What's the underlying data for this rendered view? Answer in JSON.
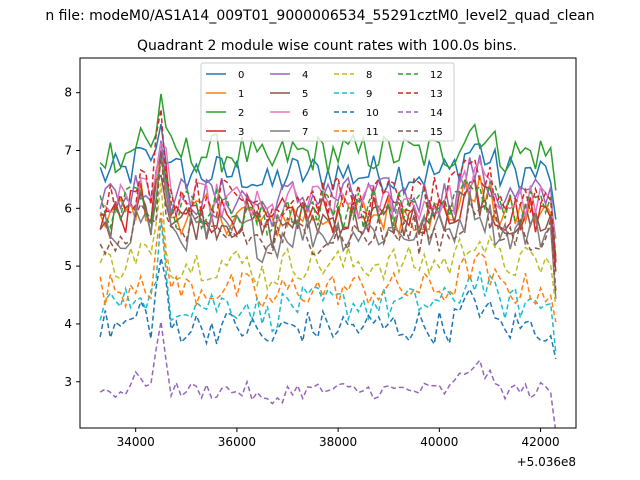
{
  "chart_data": {
    "type": "line",
    "suptitle": "n file: modeM0/AS1A14_009T01_9000006534_55291cztM0_level2_quad_clean",
    "title": "Quadrant 2 module wise count rates with 100.0s bins.",
    "xlabel": "",
    "ylabel": "",
    "x_offset_label": "+5.036e8",
    "xlim": [
      32900,
      42700
    ],
    "ylim": [
      2.2,
      8.6
    ],
    "x_ticks": [
      34000,
      36000,
      38000,
      40000,
      42000
    ],
    "x_tick_labels": [
      "34000",
      "36000",
      "38000",
      "40000",
      "42000"
    ],
    "y_ticks": [
      3,
      4,
      5,
      6,
      7,
      8
    ],
    "y_tick_labels": [
      "3",
      "4",
      "5",
      "6",
      "7",
      "8"
    ],
    "x_start": 33300,
    "x_end": 42300,
    "bin": 100,
    "grid": false,
    "legend_position": "upper-center",
    "series": [
      {
        "name": "0",
        "color": "#1f77b4",
        "dash": false,
        "base": 6.6,
        "amp": 0.35,
        "spike": 0.9
      },
      {
        "name": "1",
        "color": "#ff7f0e",
        "dash": false,
        "base": 5.9,
        "amp": 0.35,
        "spike": 0.9
      },
      {
        "name": "2",
        "color": "#2ca02c",
        "dash": false,
        "base": 6.95,
        "amp": 0.35,
        "spike": 0.9
      },
      {
        "name": "3",
        "color": "#d62728",
        "dash": false,
        "base": 5.9,
        "amp": 0.35,
        "spike": 1.0
      },
      {
        "name": "4",
        "color": "#9467bd",
        "dash": false,
        "base": 6.2,
        "amp": 0.35,
        "spike": 1.0
      },
      {
        "name": "5",
        "color": "#8c564b",
        "dash": false,
        "base": 5.8,
        "amp": 0.35,
        "spike": 1.0
      },
      {
        "name": "6",
        "color": "#e377c2",
        "dash": false,
        "base": 6.1,
        "amp": 0.35,
        "spike": 1.0
      },
      {
        "name": "7",
        "color": "#7f7f7f",
        "dash": false,
        "base": 5.6,
        "amp": 0.35,
        "spike": 1.0
      },
      {
        "name": "8",
        "color": "#bcbd22",
        "dash": true,
        "base": 5.05,
        "amp": 0.3,
        "spike": 1.0
      },
      {
        "name": "9",
        "color": "#17becf",
        "dash": true,
        "base": 4.35,
        "amp": 0.3,
        "spike": 1.1
      },
      {
        "name": "10",
        "color": "#1f77b4",
        "dash": true,
        "base": 3.95,
        "amp": 0.3,
        "spike": 1.1
      },
      {
        "name": "11",
        "color": "#ff7f0e",
        "dash": true,
        "base": 4.6,
        "amp": 0.3,
        "spike": 1.1
      },
      {
        "name": "12",
        "color": "#2ca02c",
        "dash": true,
        "base": 6.0,
        "amp": 0.35,
        "spike": 1.0
      },
      {
        "name": "13",
        "color": "#d62728",
        "dash": true,
        "base": 6.2,
        "amp": 0.35,
        "spike": 1.6
      },
      {
        "name": "14",
        "color": "#9467bd",
        "dash": true,
        "base": 2.85,
        "amp": 0.15,
        "spike": 1.2
      },
      {
        "name": "15",
        "color": "#8c564b",
        "dash": true,
        "base": 5.55,
        "amp": 0.35,
        "spike": 1.0
      }
    ]
  }
}
